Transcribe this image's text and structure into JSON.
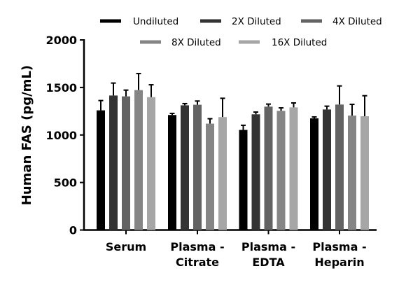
{
  "chart_data": {
    "type": "bar",
    "title": "",
    "xlabel": "",
    "ylabel": "Human FAS (pg/mL)",
    "ylim": [
      0,
      2000
    ],
    "yticks": [
      0,
      500,
      1000,
      1500,
      2000
    ],
    "grid": false,
    "legend_position": "top",
    "categories": [
      [
        "Serum"
      ],
      [
        "Plasma -",
        "Citrate"
      ],
      [
        "Plasma -",
        "EDTA"
      ],
      [
        "Plasma -",
        "Heparin"
      ]
    ],
    "series": [
      {
        "name": "Undiluted",
        "color": "#000000",
        "values": [
          1259,
          1210,
          1053,
          1175
        ],
        "error_upper": [
          1362,
          1227,
          1102,
          1190
        ]
      },
      {
        "name": "2X Diluted",
        "color": "#333333",
        "values": [
          1415,
          1312,
          1217,
          1268
        ],
        "error_upper": [
          1546,
          1330,
          1241,
          1303
        ]
      },
      {
        "name": "4X Diluted",
        "color": "#636363",
        "values": [
          1406,
          1318,
          1298,
          1320
        ],
        "error_upper": [
          1472,
          1357,
          1325,
          1516
        ]
      },
      {
        "name": "8X Diluted",
        "color": "#858585",
        "values": [
          1472,
          1119,
          1254,
          1204
        ],
        "error_upper": [
          1646,
          1171,
          1285,
          1322
        ]
      },
      {
        "name": "16X Diluted",
        "color": "#a6a6a6",
        "values": [
          1398,
          1188,
          1290,
          1197
        ],
        "error_upper": [
          1528,
          1386,
          1337,
          1413
        ]
      }
    ]
  }
}
